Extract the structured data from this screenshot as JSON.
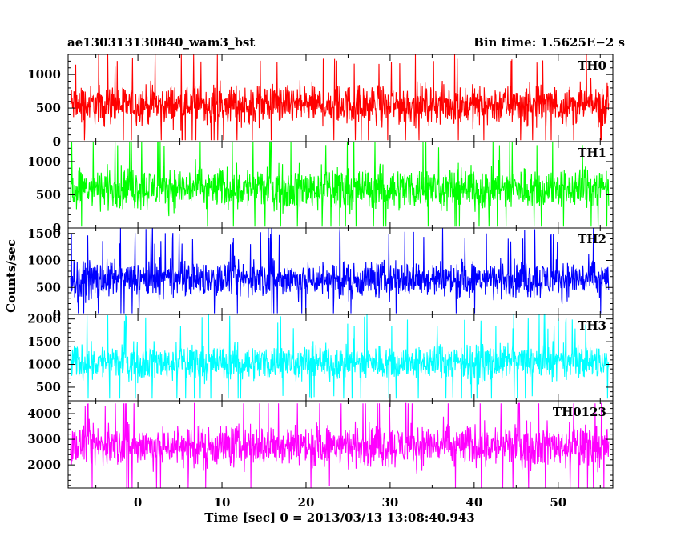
{
  "chart_data": {
    "type": "line",
    "title_left": "ae130313130840_wam3_bst",
    "title_right": "Bin time: 1.5625E−2 s",
    "xlabel": "Time [sec] 0 = 2013/03/13 13:08:40.943",
    "ylabel": "Counts/sec",
    "xlim": [
      -8.3,
      56.5
    ],
    "x_ticks": [
      0,
      10,
      20,
      30,
      40,
      50
    ],
    "data_x_range": [
      -8.0,
      56.0
    ],
    "grid": false,
    "panels": [
      {
        "name": "TH0",
        "color": "#ff0000",
        "ylim": [
          0,
          1300
        ],
        "y_ticks": [
          0,
          500,
          1000
        ],
        "baseline": 550,
        "spread": 430,
        "min": 20,
        "max": 1300
      },
      {
        "name": "TH1",
        "color": "#00ff00",
        "ylim": [
          0,
          1300
        ],
        "y_ticks": [
          0,
          500,
          1000
        ],
        "baseline": 600,
        "spread": 460,
        "min": 20,
        "max": 1300
      },
      {
        "name": "TH2",
        "color": "#0000ff",
        "ylim": [
          0,
          1600
        ],
        "y_ticks": [
          0,
          500,
          1000,
          1500
        ],
        "baseline": 650,
        "spread": 500,
        "min": 20,
        "max": 1600
      },
      {
        "name": "TH3",
        "color": "#00ffff",
        "ylim": [
          200,
          2100
        ],
        "y_ticks": [
          500,
          1000,
          1500,
          2000
        ],
        "baseline": 1050,
        "spread": 560,
        "min": 250,
        "max": 2100
      },
      {
        "name": "TH0123",
        "color": "#ff00ff",
        "ylim": [
          1100,
          4500
        ],
        "y_ticks": [
          2000,
          3000,
          4000
        ],
        "baseline": 2750,
        "spread": 1200,
        "min": 1100,
        "max": 4400
      }
    ]
  }
}
